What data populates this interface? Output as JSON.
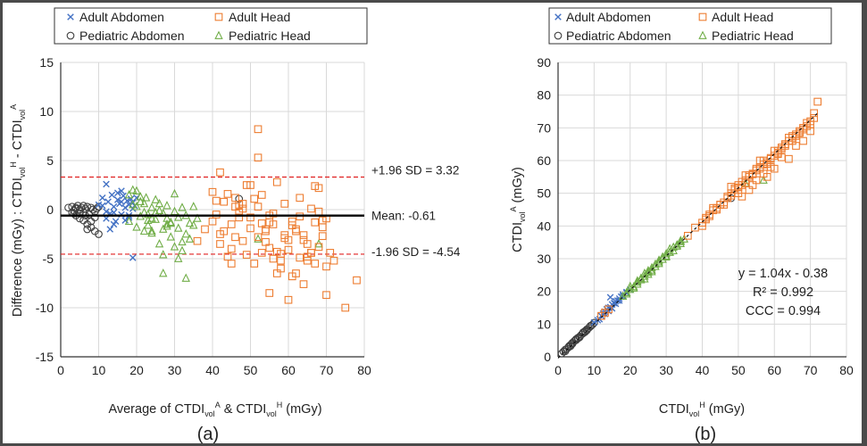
{
  "figure": {
    "caption_a": "(a)",
    "caption_b": "(b)"
  },
  "colors": {
    "adult_abdomen": "#4472c4",
    "adult_head": "#ed7d31",
    "pediatric_abdomen": "#404040",
    "pediatric_head": "#70ad47",
    "sd_line": "#e02020",
    "mean_line": "#000000",
    "grid": "#d9d9d9"
  },
  "legend": {
    "adult_abdomen": "Adult Abdomen",
    "adult_head": "Adult Head",
    "pediatric_abdomen": "Pediatric Abdomen",
    "pediatric_head": "Pediatric Head"
  },
  "chart_data": [
    {
      "id": "a",
      "type": "scatter",
      "subtype": "bland-altman",
      "xlabel": {
        "base": "Average of CTDI",
        "sub1": "vol",
        "sup1": "A",
        "mid": " & CTDI",
        "sub2": "vol",
        "sup2": "H",
        "end": " (mGy)"
      },
      "ylabel": {
        "base": "Difference (mGy) : CTDI",
        "sub1": "vol",
        "sup1": "H",
        "mid": " - CTDI",
        "sub2": "vol",
        "sup2": "A"
      },
      "xlim": [
        0,
        80
      ],
      "ylim": [
        -15,
        15
      ],
      "xticks": [
        "0",
        "10",
        "20",
        "30",
        "40",
        "50",
        "60",
        "70",
        "80"
      ],
      "yticks": [
        "-15",
        "-10",
        "-5",
        "0",
        "5",
        "10",
        "15"
      ],
      "mean": -0.61,
      "upper_loa": 3.32,
      "lower_loa": -4.54,
      "annotations": {
        "upper": "+1.96 SD = 3.32",
        "mean": "Mean: -0.61",
        "lower": "-1.96 SD = -4.54"
      },
      "series": [
        {
          "name": "Pediatric Abdomen",
          "marker": "circle",
          "x": [
            2,
            3,
            3.5,
            4,
            4.5,
            5,
            5.5,
            6,
            6.5,
            7,
            7.5,
            8,
            8.5,
            9,
            9.5,
            10,
            3,
            4,
            5,
            6,
            7,
            8,
            9,
            10,
            4,
            6,
            8,
            5,
            7,
            9,
            3.5,
            6.5,
            47
          ],
          "y": [
            0.2,
            0.3,
            -0.1,
            0.1,
            0.4,
            0,
            0.2,
            -0.3,
            0.1,
            0.3,
            -0.5,
            0.2,
            0,
            -0.8,
            0.1,
            0.3,
            -0.3,
            0.2,
            -0.9,
            -1.1,
            -1.5,
            -1.8,
            -2.2,
            -2.5,
            -0.6,
            0.4,
            -1.2,
            -0.4,
            -2,
            -0.2,
            -0.4,
            -0.6,
            1.1
          ]
        },
        {
          "name": "Adult Abdomen",
          "marker": "x",
          "x": [
            10,
            11,
            12,
            12.5,
            13,
            13.5,
            14,
            14.5,
            15,
            15.5,
            16,
            16.5,
            17,
            17.5,
            18,
            18.5,
            19,
            19.5,
            12,
            14,
            16,
            18,
            13,
            15,
            17,
            19,
            11,
            20,
            12,
            14,
            16,
            18,
            19
          ],
          "y": [
            0.5,
            1.2,
            2.6,
            0.8,
            -0.4,
            1.5,
            0.3,
            -1.2,
            1,
            0.6,
            -0.5,
            1.4,
            0.2,
            0.9,
            -0.8,
            1.1,
            -4.9,
            0.4,
            -0.9,
            -0.3,
            0.8,
            0.5,
            -2,
            1.7,
            -1.1,
            0.1,
            0.4,
            1.2,
            -0.2,
            -1.5,
            1.9,
            -0.6,
            0.7
          ]
        },
        {
          "name": "Pediatric Head",
          "marker": "triangle",
          "x": [
            18,
            19,
            20,
            21,
            22,
            22.5,
            23,
            24,
            25,
            26,
            27,
            28,
            29,
            30,
            31,
            32,
            33,
            34,
            35,
            20,
            22,
            24,
            26,
            28,
            30,
            32,
            34,
            21,
            23,
            25,
            27,
            29,
            31,
            33,
            35,
            18,
            20,
            22,
            24,
            26,
            28,
            30,
            19,
            21,
            23,
            25,
            27,
            29,
            31,
            24,
            28,
            32,
            36,
            27,
            33,
            52,
            68
          ],
          "y": [
            1.5,
            2,
            0.3,
            0.8,
            -0.3,
            1.2,
            -0.5,
            0.2,
            -1,
            0.6,
            -2,
            0.4,
            -1.3,
            1.6,
            -0.8,
            0.2,
            -2.5,
            -1.4,
            0.3,
            -1.8,
            -2.2,
            -0.9,
            -3.5,
            -1.5,
            -0.2,
            -4.2,
            -3,
            -0.7,
            -1.1,
            1,
            -0.4,
            -2.8,
            -1.9,
            -0.6,
            -1.6,
            -1.2,
            1.9,
            0.6,
            -2.4,
            -0.1,
            -0.9,
            -3.8,
            0.5,
            1.3,
            -1.6,
            -0.3,
            -4.6,
            -1.4,
            -5,
            -2.2,
            -1.7,
            -3.3,
            -0.9,
            -6.5,
            -7,
            -3,
            -3.5
          ]
        },
        {
          "name": "Adult Head",
          "marker": "square",
          "x": [
            40,
            41,
            42,
            43,
            44,
            45,
            46,
            47,
            48,
            49,
            50,
            51,
            52,
            53,
            54,
            55,
            56,
            57,
            58,
            59,
            60,
            61,
            62,
            63,
            64,
            65,
            66,
            67,
            68,
            69,
            70,
            40,
            42,
            44,
            46,
            48,
            50,
            52,
            54,
            56,
            58,
            60,
            62,
            64,
            66,
            68,
            70,
            41,
            43,
            45,
            47,
            49,
            51,
            53,
            55,
            57,
            59,
            61,
            63,
            65,
            67,
            69,
            71,
            52,
            52,
            75,
            78,
            36,
            38,
            45,
            55,
            58,
            62,
            66,
            68,
            48,
            50,
            54,
            56,
            60,
            64,
            70,
            72,
            47,
            57,
            59,
            61,
            63,
            65,
            67,
            69,
            42,
            46,
            53,
            55
          ],
          "y": [
            1.8,
            -0.5,
            -2.5,
            0.8,
            -4.8,
            -1.5,
            1.2,
            0.5,
            -3.2,
            2.5,
            -0.8,
            -5.5,
            0.3,
            1.5,
            -2.2,
            -8.5,
            -1.5,
            2.8,
            -4.5,
            0.6,
            -3.1,
            -1.2,
            -6.5,
            1.2,
            -2.6,
            -5.2,
            0.1,
            2.4,
            -3.8,
            -1.8,
            -0.9,
            -1.2,
            -3.5,
            1.6,
            -2.8,
            0.6,
            -1.9,
            -2.8,
            -3.3,
            -0.4,
            -6,
            -4.1,
            -2,
            -7.6,
            -4.4,
            -0.2,
            -5.8,
            0.9,
            -2.2,
            -5.5,
            -0.3,
            -4.6,
            1.1,
            -1.4,
            -3.9,
            -6.5,
            -2.9,
            -1.6,
            -4.9,
            -3.5,
            -5.5,
            -1.1,
            -4.4,
            8.2,
            5.3,
            -10,
            -7.2,
            -3.2,
            -2,
            -4,
            -0.6,
            -5.2,
            -2.2,
            -4.4,
            2.2,
            0.1,
            2.5,
            -2,
            -5,
            -9.2,
            -3.1,
            -8.7,
            -5.2,
            -0.8,
            -4.3,
            -2.6,
            -6.8,
            -0.7,
            -4.8,
            -1.3,
            -2.7,
            3.8,
            0.3,
            -4.4,
            -1.3
          ]
        }
      ]
    },
    {
      "id": "b",
      "type": "scatter",
      "xlabel": {
        "base": "CTDI",
        "sub1": "vol",
        "sup1": "H",
        "end": " (mGy)"
      },
      "ylabel": {
        "base": "CTDI",
        "sub1": "vol",
        "sup1": "A",
        "end": " (mGy)"
      },
      "xlim": [
        0,
        80
      ],
      "ylim": [
        0,
        90
      ],
      "xticks": [
        "0",
        "10",
        "20",
        "30",
        "40",
        "50",
        "60",
        "70",
        "80"
      ],
      "yticks": [
        "0",
        "10",
        "20",
        "30",
        "40",
        "50",
        "60",
        "70",
        "80",
        "90"
      ],
      "fit": {
        "slope": 1.04,
        "intercept": -0.38,
        "x_range": [
          0,
          72
        ]
      },
      "stats": {
        "equation": "y = 1.04x - 0.38",
        "r2": "R² = 0.992",
        "ccc": "CCC = 0.994"
      },
      "series": [
        {
          "name": "Pediatric Abdomen",
          "marker": "circle",
          "x": [
            1,
            1.5,
            2,
            2.5,
            3,
            3.5,
            4,
            4.5,
            5,
            5.5,
            6,
            6.5,
            7,
            7.5,
            8,
            8.5,
            9,
            9.5,
            10,
            2,
            3,
            4,
            5,
            6,
            7,
            8,
            9,
            3.5,
            5.5,
            7.5,
            48
          ],
          "y": [
            1,
            1.6,
            2.2,
            2.5,
            3.2,
            3.7,
            4,
            4.8,
            5.1,
            5.8,
            6.2,
            6.8,
            7.2,
            7.6,
            8.4,
            8.8,
            9.3,
            9.8,
            10.4,
            1.7,
            3,
            4.3,
            5.4,
            6,
            7.5,
            8.1,
            9.5,
            3.3,
            5.6,
            7.9,
            48.5
          ]
        },
        {
          "name": "Adult Abdomen",
          "marker": "x",
          "x": [
            10,
            11,
            12,
            12.5,
            13,
            13.5,
            14,
            14.5,
            15,
            15.5,
            16,
            16.5,
            17,
            17.5,
            18,
            19,
            20,
            11.5,
            13,
            14,
            15,
            16,
            17,
            18,
            19,
            14.5
          ],
          "y": [
            10.5,
            11.2,
            12.5,
            13.2,
            13.8,
            14.5,
            15,
            15.2,
            16,
            16.4,
            17,
            17.2,
            17.8,
            18.4,
            19,
            19.5,
            20.5,
            11.5,
            13.1,
            14,
            14.8,
            16.2,
            17.2,
            18.5,
            19.8,
            18.2
          ]
        },
        {
          "name": "Pediatric Head",
          "marker": "triangle",
          "x": [
            18,
            19,
            20,
            21,
            22,
            23,
            24,
            25,
            26,
            27,
            28,
            29,
            30,
            31,
            32,
            33,
            34,
            35,
            20,
            22,
            24,
            26,
            28,
            30,
            32,
            34,
            21,
            23,
            25,
            27,
            29,
            31,
            33,
            19,
            22,
            25,
            28,
            31,
            34,
            24,
            26,
            30,
            52,
            57
          ],
          "y": [
            18.5,
            19.6,
            20.6,
            21.4,
            22.8,
            23.5,
            24.6,
            25.8,
            26.5,
            27.6,
            29,
            29.8,
            30.5,
            31.9,
            32.4,
            33.8,
            34.6,
            36,
            21.5,
            22.2,
            25.5,
            26,
            28.5,
            31.5,
            33.5,
            35.5,
            21,
            24,
            25.2,
            28.3,
            30.5,
            32,
            34.2,
            19.2,
            23.2,
            26.3,
            29.5,
            33,
            35.2,
            23.8,
            27.2,
            30.8,
            53,
            54
          ]
        },
        {
          "name": "Adult Head",
          "marker": "square",
          "x": [
            40,
            41,
            42,
            43,
            44,
            45,
            46,
            47,
            48,
            49,
            50,
            51,
            52,
            53,
            54,
            55,
            56,
            57,
            58,
            59,
            60,
            61,
            62,
            63,
            64,
            65,
            66,
            67,
            68,
            69,
            70,
            71,
            72,
            40,
            42,
            44,
            46,
            48,
            50,
            52,
            54,
            56,
            58,
            60,
            62,
            64,
            66,
            68,
            70,
            41,
            43,
            45,
            47,
            49,
            51,
            53,
            55,
            57,
            59,
            61,
            63,
            65,
            67,
            69,
            71,
            36,
            38,
            12,
            13,
            14,
            48,
            50,
            52,
            54,
            56,
            58,
            60,
            62,
            64,
            66,
            68,
            70,
            55,
            57,
            59,
            61,
            63,
            65,
            67,
            51,
            53
          ],
          "y": [
            41,
            42.5,
            43,
            44.8,
            45,
            46.5,
            47.2,
            48.5,
            49.3,
            51,
            51.8,
            52.5,
            54,
            55,
            55.8,
            57,
            57.5,
            58.8,
            59.5,
            60.8,
            61.5,
            62.4,
            63.5,
            65,
            66,
            67,
            67.5,
            69,
            69.5,
            70.5,
            72,
            73,
            78,
            40,
            43.5,
            45.5,
            46.5,
            50,
            52.5,
            53,
            56,
            58,
            59,
            63,
            64,
            67,
            68,
            70,
            71,
            42,
            45.5,
            46.5,
            49,
            51.5,
            53.5,
            55.5,
            57.5,
            60,
            60.5,
            63,
            64.5,
            67.5,
            68.5,
            71.5,
            74.5,
            37,
            39.5,
            12.5,
            13.5,
            14.5,
            52,
            50,
            55.5,
            52.5,
            60,
            55,
            57.5,
            61,
            60.5,
            64.5,
            66,
            69,
            54,
            56,
            58,
            62,
            65,
            66,
            68.5,
            49,
            51
          ]
        }
      ]
    }
  ]
}
